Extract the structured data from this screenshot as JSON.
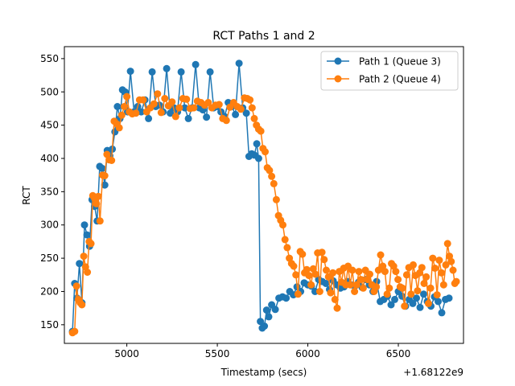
{
  "chart_data": {
    "type": "line",
    "title": "RCT Paths 1 and 2",
    "xlabel": "Timestamp (secs)",
    "ylabel": "RCT",
    "x_offset_label": "+1.68122e9",
    "xlim": [
      4655,
      6860
    ],
    "ylim": [
      122,
      568
    ],
    "x_ticks": [
      5000,
      5500,
      6000,
      6500
    ],
    "x_tick_labels": [
      "5000",
      "5500",
      "6000",
      "6500"
    ],
    "y_ticks": [
      150,
      200,
      250,
      300,
      350,
      400,
      450,
      500,
      550
    ],
    "y_tick_labels": [
      "150",
      "200",
      "250",
      "300",
      "350",
      "400",
      "450",
      "500",
      "550"
    ],
    "legend_position": "top-right",
    "grid": false,
    "series": [
      {
        "name": "Path 1 (Queue 3)",
        "color": "#1f77b4",
        "marker": "circle",
        "points": [
          [
            4700,
            140
          ],
          [
            4712,
            212
          ],
          [
            4725,
            190
          ],
          [
            4738,
            242
          ],
          [
            4752,
            183
          ],
          [
            4766,
            300
          ],
          [
            4780,
            285
          ],
          [
            4794,
            268
          ],
          [
            4808,
            338
          ],
          [
            4822,
            328
          ],
          [
            4836,
            306
          ],
          [
            4850,
            388
          ],
          [
            4864,
            385
          ],
          [
            4878,
            360
          ],
          [
            4892,
            412
          ],
          [
            4906,
            404
          ],
          [
            4920,
            414
          ],
          [
            4934,
            440
          ],
          [
            4948,
            478
          ],
          [
            4962,
            460
          ],
          [
            4976,
            503
          ],
          [
            4990,
            500
          ],
          [
            5004,
            470
          ],
          [
            5020,
            531
          ],
          [
            5040,
            470
          ],
          [
            5060,
            478
          ],
          [
            5080,
            470
          ],
          [
            5100,
            488
          ],
          [
            5120,
            460
          ],
          [
            5140,
            530
          ],
          [
            5160,
            478
          ],
          [
            5180,
            480
          ],
          [
            5200,
            470
          ],
          [
            5220,
            535
          ],
          [
            5240,
            468
          ],
          [
            5260,
            476
          ],
          [
            5280,
            470
          ],
          [
            5300,
            530
          ],
          [
            5320,
            476
          ],
          [
            5340,
            460
          ],
          [
            5360,
            476
          ],
          [
            5380,
            541
          ],
          [
            5400,
            476
          ],
          [
            5420,
            473
          ],
          [
            5440,
            462
          ],
          [
            5460,
            530
          ],
          [
            5480,
            476
          ],
          [
            5500,
            478
          ],
          [
            5520,
            470
          ],
          [
            5540,
            463
          ],
          [
            5560,
            484
          ],
          [
            5580,
            478
          ],
          [
            5600,
            466
          ],
          [
            5620,
            543
          ],
          [
            5640,
            476
          ],
          [
            5660,
            468
          ],
          [
            5675,
            403
          ],
          [
            5690,
            407
          ],
          [
            5705,
            405
          ],
          [
            5718,
            422
          ],
          [
            5728,
            400
          ],
          [
            5738,
            155
          ],
          [
            5748,
            145
          ],
          [
            5760,
            148
          ],
          [
            5772,
            172
          ],
          [
            5784,
            162
          ],
          [
            5800,
            180
          ],
          [
            5820,
            173
          ],
          [
            5840,
            190
          ],
          [
            5860,
            192
          ],
          [
            5880,
            190
          ],
          [
            5900,
            200
          ],
          [
            5920,
            195
          ],
          [
            5940,
            207
          ],
          [
            5960,
            200
          ],
          [
            5980,
            213
          ],
          [
            6000,
            210
          ],
          [
            6020,
            208
          ],
          [
            6040,
            200
          ],
          [
            6060,
            218
          ],
          [
            6080,
            215
          ],
          [
            6100,
            212
          ],
          [
            6120,
            203
          ],
          [
            6140,
            216
          ],
          [
            6160,
            210
          ],
          [
            6180,
            205
          ],
          [
            6200,
            207
          ],
          [
            6220,
            215
          ],
          [
            6240,
            210
          ],
          [
            6260,
            208
          ],
          [
            6280,
            214
          ],
          [
            6300,
            206
          ],
          [
            6320,
            218
          ],
          [
            6340,
            210
          ],
          [
            6360,
            200
          ],
          [
            6380,
            215
          ],
          [
            6400,
            185
          ],
          [
            6420,
            188
          ],
          [
            6440,
            193
          ],
          [
            6460,
            180
          ],
          [
            6480,
            188
          ],
          [
            6500,
            200
          ],
          [
            6520,
            193
          ],
          [
            6540,
            178
          ],
          [
            6560,
            188
          ],
          [
            6580,
            182
          ],
          [
            6600,
            190
          ],
          [
            6620,
            176
          ],
          [
            6640,
            196
          ],
          [
            6660,
            185
          ],
          [
            6680,
            178
          ],
          [
            6700,
            192
          ],
          [
            6720,
            185
          ],
          [
            6740,
            168
          ],
          [
            6760,
            188
          ],
          [
            6780,
            190
          ]
        ]
      },
      {
        "name": "Path 2 (Queue 4)",
        "color": "#ff7f0e",
        "marker": "circle",
        "points": [
          [
            4700,
            138
          ],
          [
            4712,
            140
          ],
          [
            4722,
            208
          ],
          [
            4732,
            188
          ],
          [
            4742,
            183
          ],
          [
            4752,
            180
          ],
          [
            4762,
            253
          ],
          [
            4772,
            237
          ],
          [
            4782,
            229
          ],
          [
            4792,
            275
          ],
          [
            4802,
            272
          ],
          [
            4812,
            344
          ],
          [
            4822,
            340
          ],
          [
            4832,
            332
          ],
          [
            4842,
            343
          ],
          [
            4852,
            306
          ],
          [
            4866,
            375
          ],
          [
            4878,
            374
          ],
          [
            4890,
            406
          ],
          [
            4902,
            398
          ],
          [
            4916,
            397
          ],
          [
            4930,
            456
          ],
          [
            4944,
            452
          ],
          [
            4958,
            446
          ],
          [
            4972,
            465
          ],
          [
            4986,
            478
          ],
          [
            5000,
            493
          ],
          [
            5014,
            470
          ],
          [
            5030,
            467
          ],
          [
            5050,
            468
          ],
          [
            5070,
            488
          ],
          [
            5090,
            488
          ],
          [
            5110,
            470
          ],
          [
            5130,
            476
          ],
          [
            5150,
            482
          ],
          [
            5170,
            497
          ],
          [
            5190,
            469
          ],
          [
            5210,
            490
          ],
          [
            5230,
            479
          ],
          [
            5250,
            485
          ],
          [
            5270,
            463
          ],
          [
            5290,
            476
          ],
          [
            5310,
            490
          ],
          [
            5330,
            489
          ],
          [
            5350,
            475
          ],
          [
            5370,
            476
          ],
          [
            5390,
            486
          ],
          [
            5410,
            484
          ],
          [
            5430,
            480
          ],
          [
            5450,
            484
          ],
          [
            5470,
            476
          ],
          [
            5490,
            480
          ],
          [
            5510,
            481
          ],
          [
            5530,
            460
          ],
          [
            5550,
            457
          ],
          [
            5570,
            477
          ],
          [
            5590,
            484
          ],
          [
            5610,
            478
          ],
          [
            5630,
            474
          ],
          [
            5650,
            491
          ],
          [
            5666,
            490
          ],
          [
            5680,
            488
          ],
          [
            5692,
            476
          ],
          [
            5704,
            460
          ],
          [
            5716,
            450
          ],
          [
            5728,
            444
          ],
          [
            5740,
            441
          ],
          [
            5752,
            415
          ],
          [
            5764,
            410
          ],
          [
            5776,
            386
          ],
          [
            5788,
            382
          ],
          [
            5800,
            373
          ],
          [
            5812,
            362
          ],
          [
            5826,
            338
          ],
          [
            5838,
            314
          ],
          [
            5850,
            307
          ],
          [
            5862,
            300
          ],
          [
            5874,
            278
          ],
          [
            5886,
            266
          ],
          [
            5898,
            250
          ],
          [
            5910,
            242
          ],
          [
            5922,
            238
          ],
          [
            5934,
            225
          ],
          [
            5946,
            196
          ],
          [
            5958,
            260
          ],
          [
            5970,
            256
          ],
          [
            5982,
            228
          ],
          [
            5994,
            233
          ],
          [
            6006,
            224
          ],
          [
            6018,
            210
          ],
          [
            6030,
            234
          ],
          [
            6042,
            226
          ],
          [
            6054,
            258
          ],
          [
            6066,
            200
          ],
          [
            6078,
            259
          ],
          [
            6090,
            248
          ],
          [
            6102,
            232
          ],
          [
            6114,
            222
          ],
          [
            6126,
            198
          ],
          [
            6138,
            228
          ],
          [
            6150,
            188
          ],
          [
            6162,
            175
          ],
          [
            6174,
            230
          ],
          [
            6186,
            214
          ],
          [
            6198,
            235
          ],
          [
            6210,
            210
          ],
          [
            6222,
            238
          ],
          [
            6234,
            210
          ],
          [
            6246,
            232
          ],
          [
            6258,
            200
          ],
          [
            6270,
            210
          ],
          [
            6282,
            230
          ],
          [
            6294,
            218
          ],
          [
            6306,
            205
          ],
          [
            6318,
            232
          ],
          [
            6330,
            218
          ],
          [
            6342,
            226
          ],
          [
            6354,
            210
          ],
          [
            6366,
            200
          ],
          [
            6378,
            207
          ],
          [
            6390,
            232
          ],
          [
            6402,
            255
          ],
          [
            6414,
            238
          ],
          [
            6426,
            230
          ],
          [
            6438,
            196
          ],
          [
            6450,
            205
          ],
          [
            6462,
            242
          ],
          [
            6474,
            238
          ],
          [
            6486,
            230
          ],
          [
            6498,
            218
          ],
          [
            6510,
            207
          ],
          [
            6522,
            205
          ],
          [
            6534,
            178
          ],
          [
            6546,
            225
          ],
          [
            6558,
            236
          ],
          [
            6570,
            196
          ],
          [
            6582,
            240
          ],
          [
            6594,
            224
          ],
          [
            6606,
            201
          ],
          [
            6618,
            228
          ],
          [
            6630,
            236
          ],
          [
            6642,
            212
          ],
          [
            6654,
            222
          ],
          [
            6666,
            182
          ],
          [
            6678,
            205
          ],
          [
            6690,
            250
          ],
          [
            6702,
            235
          ],
          [
            6714,
            195
          ],
          [
            6726,
            247
          ],
          [
            6738,
            228
          ],
          [
            6750,
            210
          ],
          [
            6762,
            240
          ],
          [
            6772,
            272
          ],
          [
            6782,
            253
          ],
          [
            6792,
            245
          ],
          [
            6802,
            232
          ],
          [
            6812,
            212
          ],
          [
            6820,
            215
          ]
        ]
      }
    ]
  }
}
